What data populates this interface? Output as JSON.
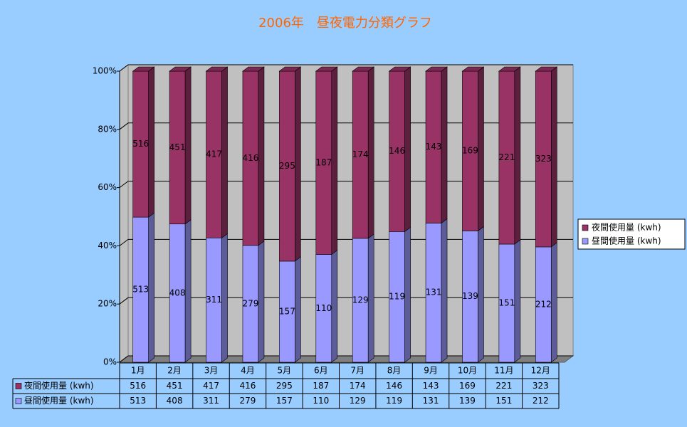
{
  "chart_data": {
    "type": "bar",
    "stacked": "percent",
    "title": "2006年　昼夜電力分類グラフ",
    "categories": [
      "1月",
      "2月",
      "3月",
      "4月",
      "5月",
      "6月",
      "7月",
      "8月",
      "9月",
      "10月",
      "11月",
      "12月"
    ],
    "series": [
      {
        "name": "夜間使用量 (kwh)",
        "color": "#993366",
        "values": [
          516,
          451,
          417,
          416,
          295,
          187,
          174,
          146,
          143,
          169,
          221,
          323
        ]
      },
      {
        "name": "昼間使用量 (kwh)",
        "color": "#9999ff",
        "values": [
          513,
          408,
          311,
          279,
          157,
          110,
          129,
          119,
          131,
          139,
          151,
          212
        ]
      }
    ],
    "ylim": [
      0,
      100
    ],
    "yticks": [
      {
        "value": 0,
        "label": "0%"
      },
      {
        "value": 20,
        "label": "20%"
      },
      {
        "value": 40,
        "label": "40%"
      },
      {
        "value": 60,
        "label": "60%"
      },
      {
        "value": 80,
        "label": "80%"
      },
      {
        "value": 100,
        "label": "100%"
      }
    ],
    "grid": true,
    "legend": "right",
    "data_table": true
  }
}
